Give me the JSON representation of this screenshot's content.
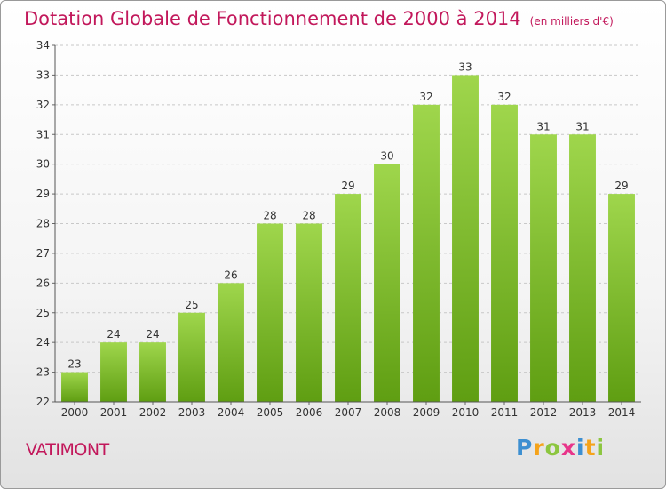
{
  "chart_data": {
    "type": "bar",
    "title": "Dotation Globale de Fonctionnement de 2000 à 2014",
    "subtitle": "(en milliers d'€)",
    "categories": [
      "2000",
      "2001",
      "2002",
      "2003",
      "2004",
      "2005",
      "2006",
      "2007",
      "2008",
      "2009",
      "2010",
      "2011",
      "2012",
      "2013",
      "2014"
    ],
    "values": [
      23,
      24,
      24,
      25,
      26,
      28,
      28,
      29,
      30,
      32,
      33,
      32,
      31,
      31,
      29
    ],
    "ylim": [
      22,
      34
    ],
    "yticks": [
      22,
      23,
      24,
      25,
      26,
      27,
      28,
      29,
      30,
      31,
      32,
      33,
      34
    ],
    "xlabel": "",
    "ylabel": "",
    "grid": true,
    "bar_color": "#7cc22c"
  },
  "footer": {
    "commune": "VATIMONT",
    "logo": "Proxiti"
  }
}
